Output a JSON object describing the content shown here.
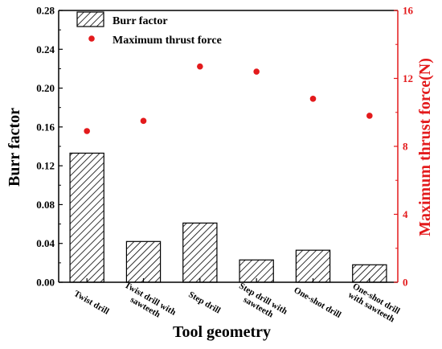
{
  "chart_data": {
    "type": "bar",
    "xlabel": "Tool geometry",
    "categories": [
      [
        "Twist drill"
      ],
      [
        "Twist drill with",
        "sawteeth"
      ],
      [
        "Step drill"
      ],
      [
        "Step drill with",
        "sawteeth"
      ],
      [
        "One-shot drill"
      ],
      [
        "One-shot drill",
        "with sawteeth"
      ]
    ],
    "series": [
      {
        "name": "Burr factor",
        "kind": "bar",
        "axis": "left",
        "values": [
          0.133,
          0.042,
          0.061,
          0.023,
          0.033,
          0.018
        ]
      },
      {
        "name": "Maximum thrust force",
        "kind": "scatter",
        "axis": "right",
        "color": "#e31a1c",
        "values": [
          8.9,
          9.5,
          12.7,
          12.4,
          10.8,
          9.8
        ]
      }
    ],
    "y_left": {
      "label": "Burr factor",
      "ylim": [
        0,
        0.28
      ],
      "ticks": [
        "0.00",
        "0.04",
        "0.08",
        "0.12",
        "0.16",
        "0.20",
        "0.24",
        "0.28"
      ]
    },
    "y_right": {
      "label": "Maximum thrust force(N)",
      "ylim": [
        0,
        16
      ],
      "ticks": [
        "0",
        "4",
        "8",
        "12",
        "16"
      ],
      "color": "#e31a1c"
    },
    "legend_position": "top-left",
    "grid": false
  }
}
